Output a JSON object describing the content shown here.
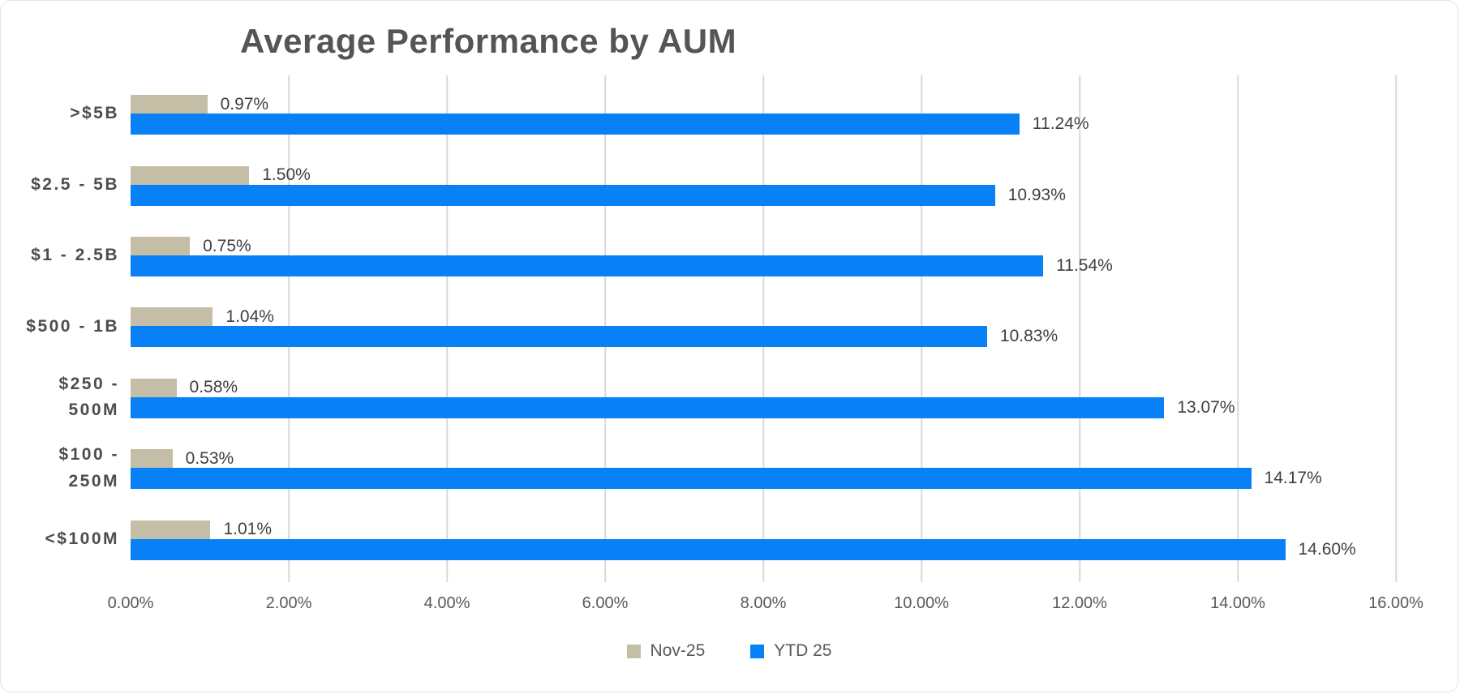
{
  "title": "Average Performance by AUM",
  "colors": {
    "nov_series": "#c4bea6",
    "ytd_series": "#0881f6",
    "gridline": "#d9d9d9",
    "title_text": "#555555",
    "value_text": "#3f3f3f",
    "axis_text": "#595959",
    "category_text": "#4d4d4d"
  },
  "chart_data": {
    "type": "bar",
    "orientation": "horizontal",
    "title": "Average Performance by AUM",
    "categories": [
      ">$5B",
      "$2.5 - 5B",
      "$1 - 2.5B",
      "$500 - 1B",
      "$250 -\n500M",
      "$100 -\n250M",
      "<$100M"
    ],
    "series": [
      {
        "name": "Nov-25",
        "values": [
          0.97,
          1.5,
          0.75,
          1.04,
          0.58,
          0.53,
          1.01
        ],
        "labels": [
          "0.97%",
          "1.50%",
          "0.75%",
          "1.04%",
          "0.58%",
          "0.53%",
          "1.01%"
        ]
      },
      {
        "name": "YTD 25",
        "values": [
          11.24,
          10.93,
          11.54,
          10.83,
          13.07,
          14.17,
          14.6
        ],
        "labels": [
          "11.24%",
          "10.93%",
          "11.54%",
          "10.83%",
          "13.07%",
          "14.17%",
          "14.60%"
        ]
      }
    ],
    "xlim": [
      0,
      16
    ],
    "x_tick_step": 2,
    "x_tick_labels": [
      "0.00%",
      "2.00%",
      "4.00%",
      "6.00%",
      "8.00%",
      "10.00%",
      "12.00%",
      "14.00%",
      "16.00%"
    ],
    "grid": true,
    "legend_position": "bottom"
  }
}
